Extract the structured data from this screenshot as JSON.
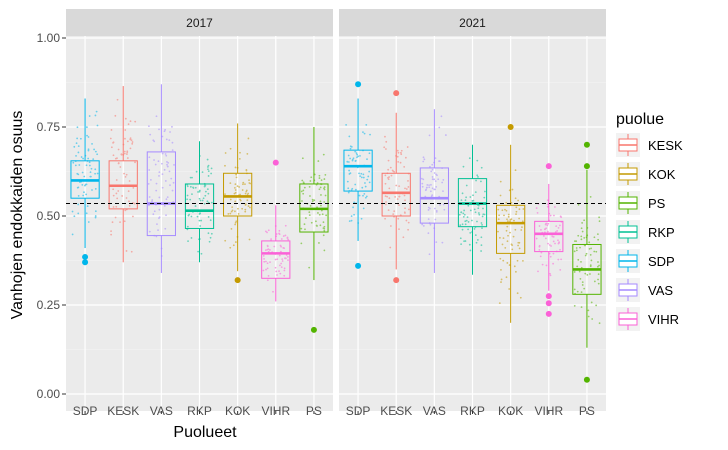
{
  "chart_data": {
    "type": "boxplot",
    "ylabel": "Vanhojen endokkaiden osuus",
    "xlabel": "Puolueet",
    "ylim": [
      0,
      1
    ],
    "yticks": [
      "0.00",
      "0.25",
      "0.50",
      "0.75",
      "1.00"
    ],
    "reference_line": 0.535,
    "grid": true,
    "legend": {
      "title": "puolue",
      "placement": "right",
      "entries": [
        {
          "name": "KESK",
          "color": "#F8766D"
        },
        {
          "name": "KOK",
          "color": "#C49A00"
        },
        {
          "name": "PS",
          "color": "#53B400"
        },
        {
          "name": "RKP",
          "color": "#00C094"
        },
        {
          "name": "SDP",
          "color": "#00B6EB"
        },
        {
          "name": "VAS",
          "color": "#A58AFF"
        },
        {
          "name": "VIHR",
          "color": "#FB61D7"
        }
      ]
    },
    "facets": [
      {
        "title": "2017",
        "categories": [
          "SDP",
          "KESK",
          "VAS",
          "RKP",
          "KOK",
          "VIHR",
          "PS"
        ],
        "boxes": [
          {
            "party": "SDP",
            "min": 0.41,
            "q1": 0.55,
            "median": 0.6,
            "q3": 0.655,
            "max": 0.83,
            "outliers": [
              0.37,
              0.385
            ]
          },
          {
            "party": "KESK",
            "min": 0.37,
            "q1": 0.52,
            "median": 0.585,
            "q3": 0.655,
            "max": 0.865,
            "outliers": []
          },
          {
            "party": "VAS",
            "min": 0.34,
            "q1": 0.445,
            "median": 0.535,
            "q3": 0.68,
            "max": 0.87,
            "outliers": []
          },
          {
            "party": "RKP",
            "min": 0.37,
            "q1": 0.465,
            "median": 0.515,
            "q3": 0.59,
            "max": 0.71,
            "outliers": []
          },
          {
            "party": "KOK",
            "min": 0.345,
            "q1": 0.5,
            "median": 0.555,
            "q3": 0.62,
            "max": 0.76,
            "outliers": [
              0.32
            ]
          },
          {
            "party": "VIHR",
            "min": 0.26,
            "q1": 0.325,
            "median": 0.395,
            "q3": 0.43,
            "max": 0.53,
            "outliers": [
              0.65
            ]
          },
          {
            "party": "PS",
            "min": 0.32,
            "q1": 0.455,
            "median": 0.52,
            "q3": 0.59,
            "max": 0.75,
            "outliers": [
              0.18
            ]
          }
        ]
      },
      {
        "title": "2021",
        "categories": [
          "SDP",
          "KESK",
          "VAS",
          "RKP",
          "KOK",
          "VIHR",
          "PS"
        ],
        "boxes": [
          {
            "party": "SDP",
            "min": 0.43,
            "q1": 0.57,
            "median": 0.64,
            "q3": 0.685,
            "max": 0.83,
            "outliers": [
              0.87,
              0.36
            ]
          },
          {
            "party": "KESK",
            "min": 0.35,
            "q1": 0.5,
            "median": 0.565,
            "q3": 0.62,
            "max": 0.79,
            "outliers": [
              0.845,
              0.32
            ]
          },
          {
            "party": "VAS",
            "min": 0.34,
            "q1": 0.48,
            "median": 0.55,
            "q3": 0.635,
            "max": 0.8,
            "outliers": []
          },
          {
            "party": "RKP",
            "min": 0.335,
            "q1": 0.47,
            "median": 0.535,
            "q3": 0.605,
            "max": 0.7,
            "outliers": []
          },
          {
            "party": "KOK",
            "min": 0.2,
            "q1": 0.395,
            "median": 0.48,
            "q3": 0.53,
            "max": 0.7,
            "outliers": [
              0.75
            ]
          },
          {
            "party": "VIHR",
            "min": 0.29,
            "q1": 0.4,
            "median": 0.45,
            "q3": 0.485,
            "max": 0.59,
            "outliers": [
              0.64,
              0.275,
              0.255,
              0.225
            ]
          },
          {
            "party": "PS",
            "min": 0.13,
            "q1": 0.28,
            "median": 0.35,
            "q3": 0.42,
            "max": 0.63,
            "outliers": [
              0.7,
              0.64,
              0.04
            ]
          }
        ]
      }
    ]
  }
}
